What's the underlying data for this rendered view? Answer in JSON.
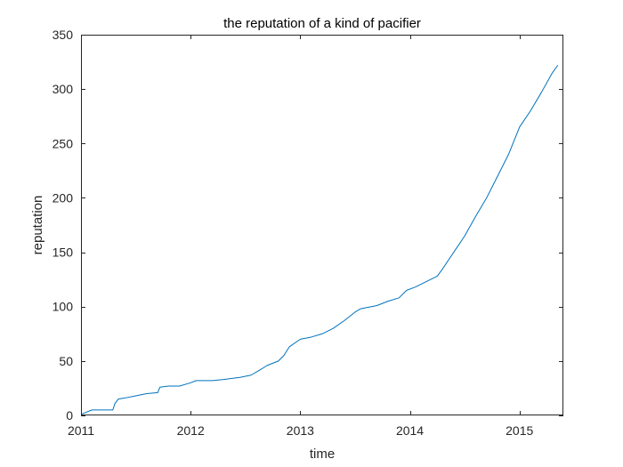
{
  "chart_data": {
    "type": "line",
    "title": "the reputation of a kind of pacifier",
    "xlabel": "time",
    "ylabel": "reputation",
    "xlim": [
      2011,
      2015.4
    ],
    "ylim": [
      0,
      350
    ],
    "x_ticks": [
      2011,
      2012,
      2013,
      2014,
      2015
    ],
    "x_tick_labels": [
      "2011",
      "2012",
      "2013",
      "2014",
      "2015"
    ],
    "y_ticks": [
      0,
      50,
      100,
      150,
      200,
      250,
      300,
      350
    ],
    "y_tick_labels": [
      "0",
      "50",
      "100",
      "150",
      "200",
      "250",
      "300",
      "350"
    ],
    "grid": false,
    "series": [
      {
        "color": "#0072BD",
        "x": [
          2011.0,
          2011.05,
          2011.1,
          2011.2,
          2011.29,
          2011.31,
          2011.34,
          2011.4,
          2011.5,
          2011.6,
          2011.7,
          2011.72,
          2011.8,
          2011.9,
          2012.0,
          2012.05,
          2012.2,
          2012.3,
          2012.45,
          2012.55,
          2012.62,
          2012.7,
          2012.8,
          2012.85,
          2012.9,
          2013.0,
          2013.1,
          2013.2,
          2013.3,
          2013.4,
          2013.5,
          2013.55,
          2013.7,
          2013.8,
          2013.9,
          2013.97,
          2014.05,
          2014.15,
          2014.25,
          2014.3,
          2014.4,
          2014.5,
          2014.6,
          2014.7,
          2014.8,
          2014.9,
          2015.0,
          2015.1,
          2015.2,
          2015.3,
          2015.35
        ],
        "y": [
          1,
          3,
          5,
          5,
          5,
          11,
          15,
          16,
          18,
          20,
          21,
          26,
          27,
          27,
          30,
          32,
          32,
          33,
          35,
          37,
          41,
          46,
          50,
          55,
          63,
          70,
          72,
          75,
          80,
          87,
          95,
          98,
          101,
          105,
          108,
          115,
          118,
          123,
          128,
          135,
          150,
          165,
          183,
          200,
          220,
          240,
          265,
          280,
          297,
          315,
          322
        ]
      }
    ]
  }
}
